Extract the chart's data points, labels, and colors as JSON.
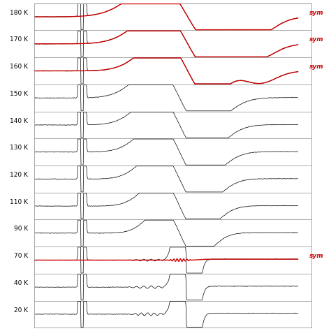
{
  "temperatures": [
    180,
    170,
    160,
    150,
    140,
    130,
    120,
    110,
    90,
    70,
    40,
    20
  ],
  "red_sym_temps": [
    180,
    170,
    160,
    70
  ],
  "background_color": "#ffffff",
  "text_color": "#000000",
  "red_color": "#cc0000",
  "black_color": "#000000",
  "sym_label": "sym",
  "figsize": [
    4.74,
    4.74
  ],
  "dpi": 100,
  "n_points": 600,
  "noise_scale": 0.015,
  "trace_amplitude": 0.35,
  "separator_color": "#888888",
  "separator_lw": 0.5
}
